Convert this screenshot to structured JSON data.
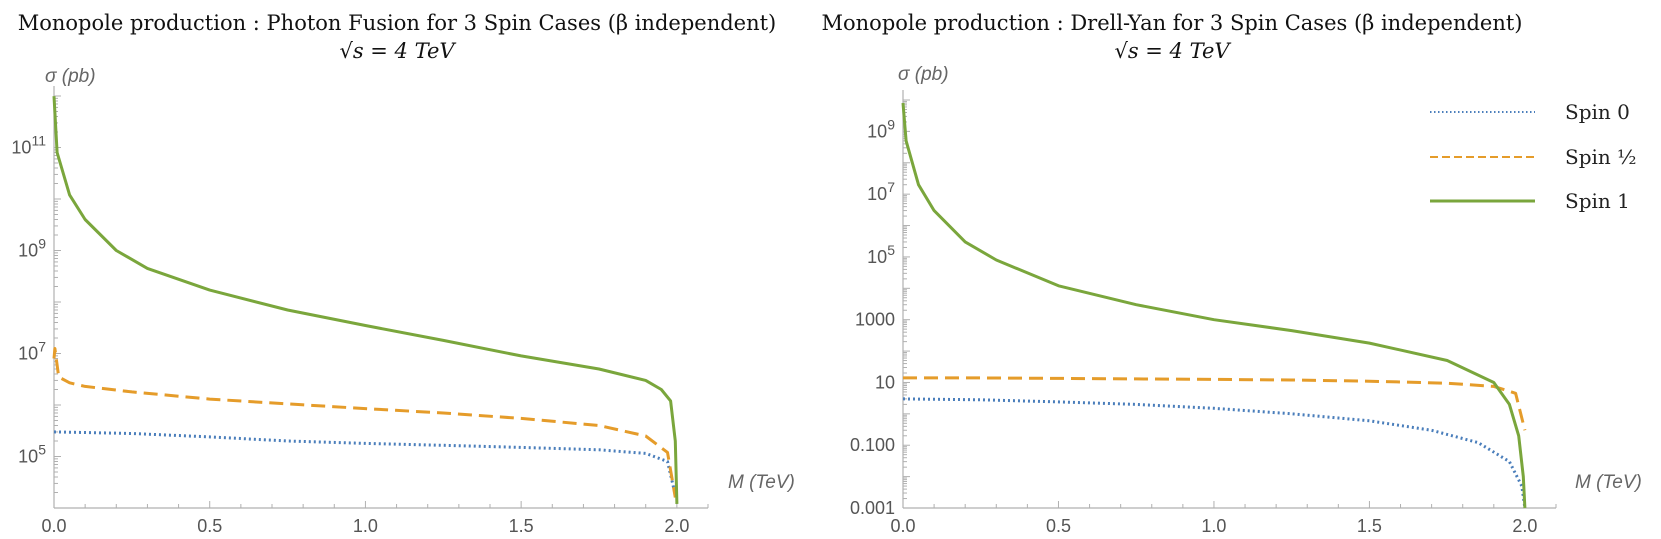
{
  "chart_data": [
    {
      "type": "line",
      "title": "Monopole production : Photon Fusion for 3 Spin Cases (β independent)",
      "subtitle": "√s = 4 TeV",
      "xlabel": "M  (TeV)",
      "ylabel": "σ (pb)",
      "yscale": "log",
      "xlim": [
        0,
        2.1
      ],
      "ylim_log10": [
        4.0,
        12.0
      ],
      "xticks": [
        0.0,
        0.5,
        1.0,
        1.5,
        2.0
      ],
      "xtick_labels": [
        "0.0",
        "0.5",
        "1.0",
        "1.5",
        "2.0"
      ],
      "yticks": [
        {
          "value": 100000,
          "base": "10",
          "exp": "5"
        },
        {
          "value": 10000000,
          "base": "10",
          "exp": "7"
        },
        {
          "value": 1000000000,
          "base": "10",
          "exp": "9"
        },
        {
          "value": 100000000000,
          "base": "10",
          "exp": "11"
        }
      ],
      "series": [
        {
          "name": "Spin 0",
          "style": "dotted",
          "color": "#4a7ebb",
          "x": [
            0.0,
            0.25,
            0.5,
            0.75,
            1.0,
            1.25,
            1.5,
            1.75,
            1.9,
            1.97,
            1.995
          ],
          "y": [
            300000,
            280000,
            240000,
            200000,
            180000,
            165000,
            150000,
            135000,
            115000,
            80000,
            18000
          ]
        },
        {
          "name": "Spin ½",
          "style": "dashed",
          "color": "#e59c2a",
          "x": [
            0.0,
            0.003,
            0.015,
            0.05,
            0.1,
            0.25,
            0.5,
            0.75,
            1.0,
            1.25,
            1.5,
            1.75,
            1.9,
            1.97,
            1.995
          ],
          "y": [
            8000000,
            12500000,
            3500000,
            2700000,
            2300000,
            1800000,
            1300000,
            1050000,
            850000,
            700000,
            550000,
            400000,
            250000,
            120000,
            16000
          ]
        },
        {
          "name": "Spin 1",
          "style": "solid",
          "color": "#7aa63c",
          "x": [
            0.0,
            0.01,
            0.05,
            0.1,
            0.2,
            0.3,
            0.5,
            0.75,
            1.0,
            1.25,
            1.5,
            1.75,
            1.9,
            1.95,
            1.98,
            1.995,
            2.0
          ],
          "y": [
            990000000000,
            80000000000,
            12000000000,
            4000000000,
            1000000000,
            450000000,
            170000000,
            70000000,
            35000000,
            18000000,
            9000000,
            5000000,
            3000000,
            2000000,
            1200000,
            200000,
            12000
          ]
        }
      ]
    },
    {
      "type": "line",
      "title": "Monopole production : Drell-Yan for 3 Spin Cases (β independent)",
      "subtitle": "√s = 4 TeV",
      "xlabel": "M  (TeV)",
      "ylabel": "σ (pb)",
      "yscale": "log",
      "xlim": [
        0,
        2.1
      ],
      "ylim_log10": [
        -3.0,
        10.0
      ],
      "xticks": [
        0.0,
        0.5,
        1.0,
        1.5,
        2.0
      ],
      "xtick_labels": [
        "0.0",
        "0.5",
        "1.0",
        "1.5",
        "2.0"
      ],
      "yticks": [
        {
          "value": 0.001,
          "label": "0.001"
        },
        {
          "value": 0.1,
          "label": "0.100"
        },
        {
          "value": 10,
          "label": "10"
        },
        {
          "value": 1000,
          "label": "1000"
        },
        {
          "value": 100000,
          "base": "10",
          "exp": "5"
        },
        {
          "value": 10000000,
          "base": "10",
          "exp": "7"
        },
        {
          "value": 1000000000,
          "base": "10",
          "exp": "9"
        }
      ],
      "legend": {
        "placement": "top-right",
        "entries": [
          "Spin 0",
          "Spin ½",
          "Spin 1"
        ]
      },
      "series": [
        {
          "name": "Spin 0",
          "style": "dotted",
          "color": "#4a7ebb",
          "x": [
            0.0,
            0.25,
            0.5,
            0.75,
            1.0,
            1.25,
            1.5,
            1.7,
            1.85,
            1.95,
            1.99,
            2.0
          ],
          "y": [
            3.0,
            2.8,
            2.4,
            2.0,
            1.5,
            1.0,
            0.6,
            0.3,
            0.12,
            0.03,
            0.005,
            0.001
          ]
        },
        {
          "name": "Spin ½",
          "style": "dashed",
          "color": "#e59c2a",
          "x": [
            0.0,
            0.25,
            0.5,
            0.75,
            1.0,
            1.25,
            1.5,
            1.75,
            1.9,
            1.97,
            2.0
          ],
          "y": [
            14,
            14,
            13.5,
            13,
            12.5,
            12,
            11,
            9.5,
            7.5,
            4.5,
            0.3
          ]
        },
        {
          "name": "Spin 1",
          "style": "solid",
          "color": "#7aa63c",
          "x": [
            0.0,
            0.01,
            0.05,
            0.1,
            0.2,
            0.3,
            0.5,
            0.75,
            1.0,
            1.25,
            1.5,
            1.75,
            1.9,
            1.95,
            1.98,
            1.995,
            2.0
          ],
          "y": [
            8000000000,
            500000000,
            20000000,
            3000000,
            300000,
            80000,
            12000,
            3000,
            1000,
            450,
            180,
            50,
            10,
            2,
            0.2,
            0.01,
            0.001
          ]
        }
      ]
    }
  ]
}
